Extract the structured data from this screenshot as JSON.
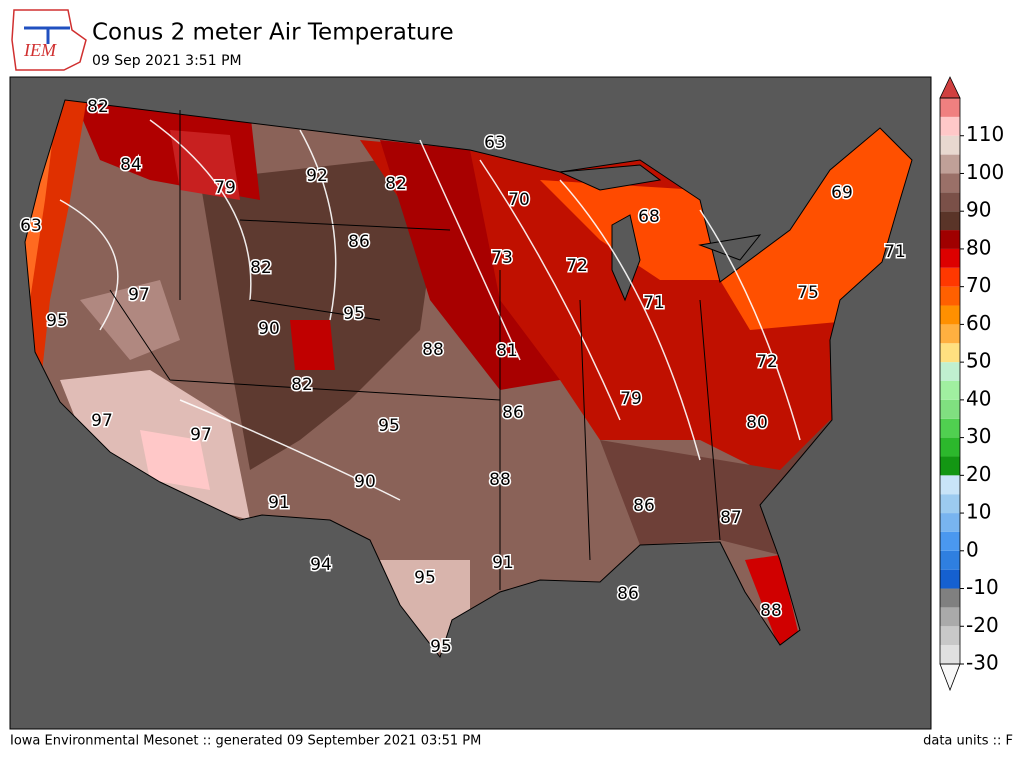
{
  "header": {
    "title": "Conus 2 meter Air Temperature",
    "subtitle": "09 Sep 2021 3:51 PM",
    "logo_text": "IEM"
  },
  "map": {
    "station_values": [
      82,
      84,
      79,
      92,
      82,
      63,
      70,
      68,
      69,
      71,
      63,
      86,
      82,
      73,
      72,
      97,
      95,
      90,
      95,
      88,
      81,
      71,
      75,
      72,
      82,
      79,
      86,
      97,
      97,
      95,
      80,
      90,
      88,
      91,
      86,
      87,
      94,
      95,
      91,
      86,
      88,
      95
    ]
  },
  "colorbar": {
    "ticks": [
      -30,
      -20,
      -10,
      0,
      10,
      20,
      30,
      40,
      50,
      60,
      70,
      80,
      90,
      100,
      110
    ],
    "levels": [
      -30,
      -25,
      -20,
      -15,
      -10,
      -5,
      0,
      5,
      10,
      15,
      20,
      25,
      30,
      35,
      40,
      45,
      50,
      55,
      60,
      65,
      70,
      75,
      80,
      85,
      90,
      95,
      100,
      105,
      110,
      115,
      120
    ],
    "colors": [
      "#e0e0e0",
      "#c8c8c8",
      "#aaaaaa",
      "#808080",
      "#1560d0",
      "#2f7fe0",
      "#4a98f0",
      "#78b4f0",
      "#9ccbf0",
      "#c8e4f8",
      "#139613",
      "#2cb82c",
      "#50d050",
      "#80e080",
      "#a0f0a0",
      "#c0f0d0",
      "#ffe080",
      "#ffb040",
      "#ff9000",
      "#ff6000",
      "#ff3800",
      "#dd0000",
      "#a00000",
      "#5a3428",
      "#7a5048",
      "#9a7068",
      "#c0a098",
      "#e8d8d0",
      "#ffc8c8",
      "#f08080"
    ],
    "under_color": "#f8f8f8",
    "over_color": "#d04040"
  },
  "footer": {
    "left": "Iowa Environmental Mesonet :: generated 09 September 2021 03:51 PM",
    "right": "data units :: F"
  }
}
